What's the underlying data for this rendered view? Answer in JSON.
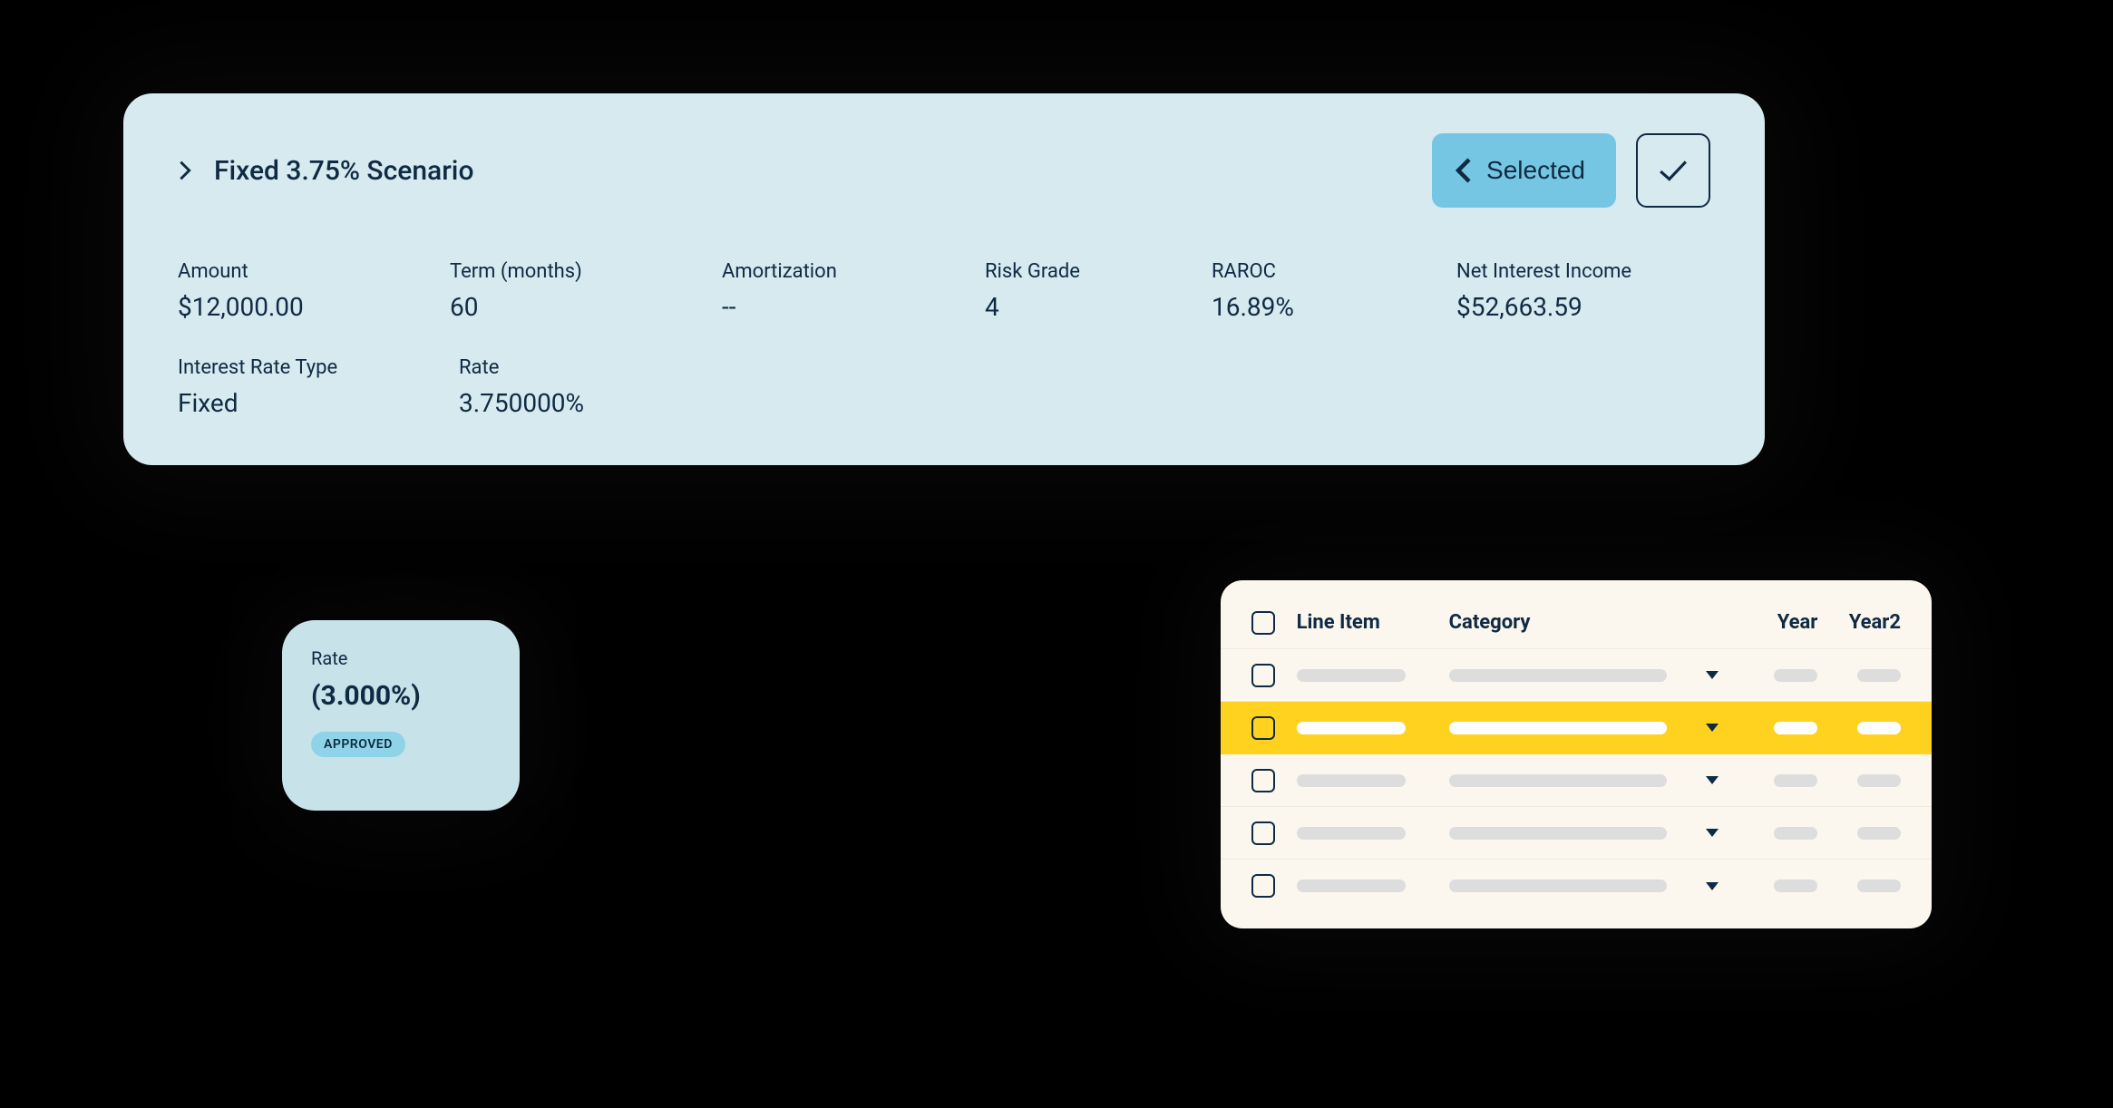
{
  "colors": {
    "page_bg": "#000000",
    "scenario_bg": "#d6eaef",
    "text_dark": "#0f2a43",
    "selected_bg": "#74c6e3",
    "ratecard_bg": "#c8e2e9",
    "approved_bg": "#8fd3e8",
    "approved_text": "#0f2a43",
    "table_bg": "#fbf7ee",
    "table_divider": "#eee9dd",
    "highlight_bg": "#ffd21f",
    "skel_grey": "#dddddd",
    "skel_white": "#ffffff"
  },
  "scenario": {
    "title": "Fixed 3.75% Scenario",
    "selected_label": "Selected",
    "metrics": {
      "amount": {
        "label": "Amount",
        "value": "$12,000.00"
      },
      "term": {
        "label": "Term (months)",
        "value": "60"
      },
      "amort": {
        "label": "Amortization",
        "value": "--"
      },
      "risk": {
        "label": "Risk Grade",
        "value": "4"
      },
      "raroc": {
        "label": "RAROC",
        "value": "16.89%"
      },
      "nii": {
        "label": "Net Interest Income",
        "value": "$52,663.59"
      },
      "irtype": {
        "label": "Interest Rate Type",
        "value": "Fixed"
      },
      "rate": {
        "label": "Rate",
        "value": "3.750000%"
      }
    }
  },
  "rate_card": {
    "label": "Rate",
    "value": "(3.000%)",
    "badge": "APPROVED"
  },
  "table": {
    "columns": {
      "line_item": "Line Item",
      "category": "Category",
      "year": "Year",
      "year2": "Year2"
    },
    "rows": [
      {
        "highlighted": false
      },
      {
        "highlighted": true
      },
      {
        "highlighted": false
      },
      {
        "highlighted": false
      },
      {
        "highlighted": false
      }
    ]
  }
}
